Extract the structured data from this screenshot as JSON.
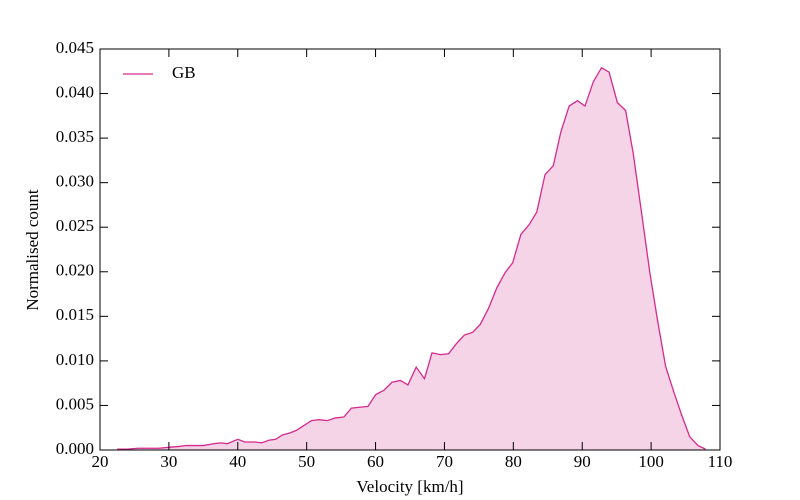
{
  "chart_data": {
    "type": "area",
    "xlabel": "Velocity [km/h]",
    "ylabel": "Normalised count",
    "x": [
      22.5,
      24,
      25.5,
      27,
      28.5,
      30,
      31.5,
      32.5,
      34,
      35,
      36.5,
      37.5,
      38.5,
      40,
      41,
      42.5,
      43.5,
      44.5,
      45.5,
      46.5,
      47.5,
      48.5,
      49.5,
      50.7,
      51.8,
      53.0,
      54.2,
      55.4,
      56.5,
      57.7,
      58.9,
      60.0,
      61.2,
      62.4,
      63.6,
      64.7,
      65.9,
      67.1,
      68.2,
      69.4,
      70.6,
      71.7,
      72.9,
      74.1,
      75.2,
      76.4,
      77.6,
      78.8,
      79.9,
      81.1,
      82.3,
      83.4,
      84.6,
      85.8,
      86.9,
      88.1,
      89.3,
      90.4,
      91.6,
      92.8,
      93.9,
      95.1,
      96.3,
      97.4,
      98.6,
      99.8,
      100.9,
      102.1,
      103.3,
      104.4,
      105.6,
      106.8,
      107.9
    ],
    "series": [
      {
        "name": "GB",
        "color": "#d62a8c",
        "fill": "#f5d4e8",
        "values": [
          0.0001,
          0.0001,
          0.0002,
          0.0002,
          0.0002,
          0.0003,
          0.0004,
          0.0005,
          0.0005,
          0.0005,
          0.0007,
          0.0008,
          0.0007,
          0.0012,
          0.0009,
          0.0009,
          0.0008,
          0.0011,
          0.0012,
          0.0017,
          0.0019,
          0.0022,
          0.0027,
          0.0033,
          0.0034,
          0.0033,
          0.0036,
          0.0037,
          0.0047,
          0.0048,
          0.0049,
          0.0062,
          0.0067,
          0.0076,
          0.0078,
          0.0073,
          0.0093,
          0.008,
          0.0109,
          0.0107,
          0.0108,
          0.0119,
          0.0129,
          0.0132,
          0.0141,
          0.0159,
          0.0182,
          0.0199,
          0.021,
          0.0242,
          0.0253,
          0.0267,
          0.0309,
          0.0319,
          0.0357,
          0.0386,
          0.0392,
          0.0386,
          0.0413,
          0.0429,
          0.0424,
          0.039,
          0.0381,
          0.0333,
          0.0267,
          0.02,
          0.0147,
          0.0094,
          0.0065,
          0.004,
          0.0015,
          0.0005,
          0.0001
        ]
      }
    ],
    "xlim": [
      20,
      110
    ],
    "xticks": [
      20,
      30,
      40,
      50,
      60,
      70,
      80,
      90,
      100,
      110
    ],
    "ylim": [
      0,
      0.045
    ],
    "yticks": [
      {
        "value": 0,
        "label": "0.000"
      },
      {
        "value": 0.005,
        "label": "0.005"
      },
      {
        "value": 0.01,
        "label": "0.010"
      },
      {
        "value": 0.015,
        "label": "0.015"
      },
      {
        "value": 0.02,
        "label": "0.020"
      },
      {
        "value": 0.025,
        "label": "0.025"
      },
      {
        "value": 0.03,
        "label": "0.030"
      },
      {
        "value": 0.035,
        "label": "0.035"
      },
      {
        "value": 0.04,
        "label": "0.040"
      },
      {
        "value": 0.045,
        "label": "0.045"
      }
    ],
    "grid": false,
    "legend": "upper left"
  }
}
